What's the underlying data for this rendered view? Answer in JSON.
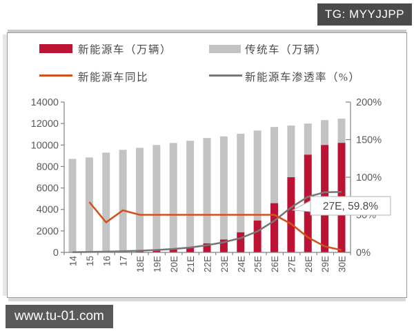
{
  "watermarks": {
    "top_right": "TG: MYYJJPP",
    "bottom_left": "www.tu-01.com"
  },
  "colors": {
    "nev_bar": "#bc1233",
    "traditional_bar": "#c3c3c3",
    "yoy_line": "#d4511e",
    "penetration_line": "#777777",
    "axis": "#808080",
    "axis_text": "#595959",
    "badge_dark": "#4a4a4a"
  },
  "legend": {
    "items": [
      {
        "type": "bar",
        "color": "#bc1233",
        "label": "新能源车（万辆）"
      },
      {
        "type": "bar",
        "color": "#c3c3c3",
        "label": "传统车（万辆）"
      },
      {
        "type": "line",
        "color": "#d4511e",
        "label": "新能源车同比"
      },
      {
        "type": "line",
        "color": "#777777",
        "label": "新能源车渗透率（%）"
      }
    ]
  },
  "chart_data": {
    "type": "combo-stacked-bar-line",
    "categories": [
      "14",
      "15",
      "16",
      "17",
      "18E",
      "19E",
      "20E",
      "21E",
      "22E",
      "23E",
      "24E",
      "25E",
      "26E",
      "27E",
      "28E",
      "29E",
      "30E"
    ],
    "series": [
      {
        "name": "新能源车（万辆）",
        "type": "bar",
        "stack": "total",
        "axis": "left",
        "color": "#bc1233",
        "values": [
          5,
          25,
          50,
          80,
          120,
          180,
          260,
          430,
          840,
          1200,
          1870,
          2970,
          4580,
          7000,
          9100,
          10000,
          10200
        ]
      },
      {
        "name": "传统车（万辆）",
        "type": "bar",
        "stack": "total",
        "axis": "left",
        "color": "#c3c3c3",
        "values": [
          8700,
          8815,
          9240,
          9470,
          9620,
          9820,
          9930,
          9960,
          9810,
          9600,
          9180,
          8380,
          7100,
          4810,
          2900,
          2320,
          2250
        ]
      },
      {
        "name": "新能源车同比",
        "type": "line",
        "axis": "right",
        "color": "#d4511e",
        "values": [
          null,
          67,
          40,
          56,
          50,
          50,
          50,
          50,
          50,
          50,
          50,
          50,
          50,
          38,
          20,
          8,
          3
        ]
      },
      {
        "name": "新能源车渗透率（%）",
        "type": "line",
        "axis": "right",
        "color": "#777777",
        "values": [
          0.3,
          0.6,
          1,
          1.5,
          2.2,
          3.2,
          4.5,
          6.5,
          9.5,
          13.5,
          19,
          28,
          42,
          59.8,
          74,
          80,
          80.5
        ]
      }
    ],
    "left_axis": {
      "min": 0,
      "max": 14000,
      "step": 2000,
      "tick_labels": [
        "0",
        "2000",
        "4000",
        "6000",
        "8000",
        "10000",
        "12000",
        "14000"
      ]
    },
    "right_axis": {
      "min": 0,
      "max": 200,
      "step": 50,
      "tick_labels": [
        "0%",
        "50%",
        "100%",
        "150%",
        "200%"
      ]
    },
    "annotation": {
      "text": "27E, 59.8%",
      "attached_to": "27E",
      "value_pct": 59.8
    },
    "grid": false,
    "legend_position": "top"
  }
}
